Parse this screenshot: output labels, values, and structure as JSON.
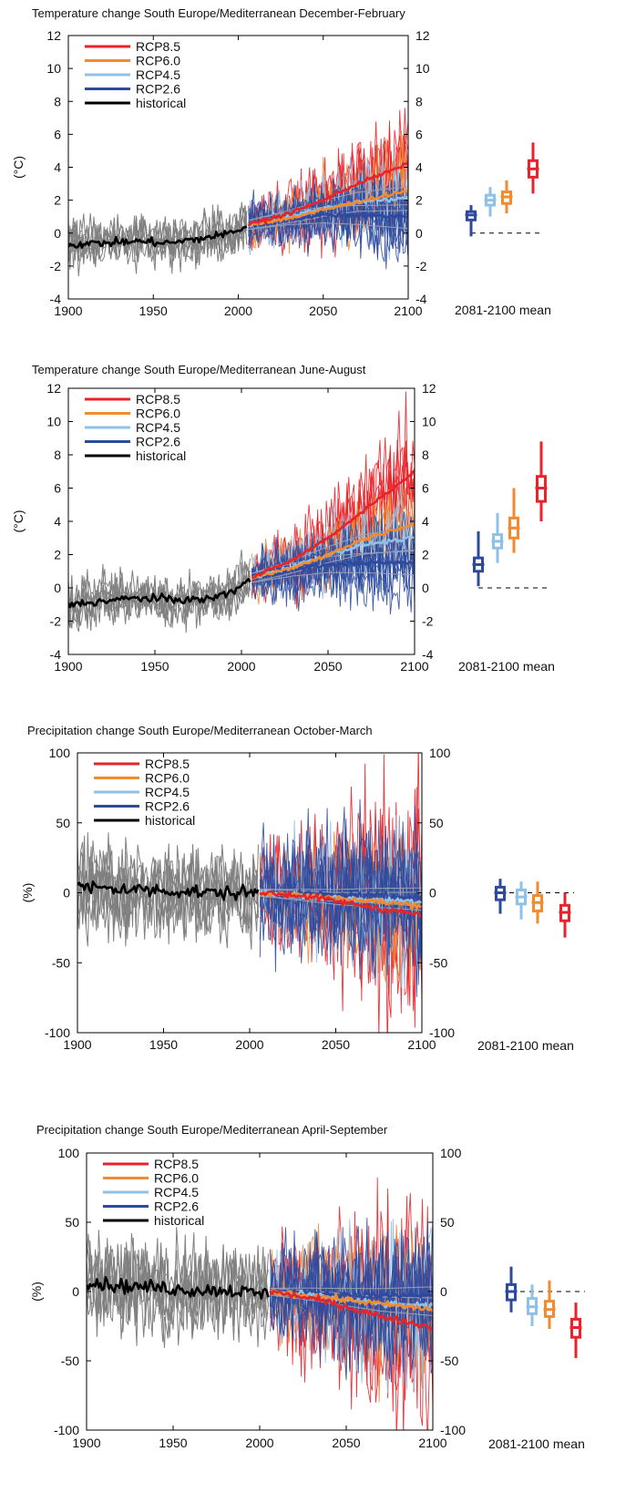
{
  "colors": {
    "rcp85": "#e8232a",
    "rcp60": "#f28a2e",
    "rcp45": "#8fc0e6",
    "rcp26": "#2e4a9e",
    "historical": "#000000",
    "spread_hist": "#808080"
  },
  "chart_data": [
    {
      "type": "line",
      "title": "Temperature change South Europe/Mediterranean December-February",
      "ylabel": "(°C)",
      "xlim": [
        1900,
        2100
      ],
      "ylim": [
        -4,
        12
      ],
      "xticks": [
        "1900",
        "1950",
        "2000",
        "2050",
        "2100"
      ],
      "yticks": [
        "-4",
        "-2",
        "0",
        "2",
        "4",
        "6",
        "8",
        "10",
        "12"
      ],
      "legend": {
        "placement": "top-left",
        "entries": [
          "RCP8.5",
          "RCP6.0",
          "RCP4.5",
          "RCP2.6",
          "historical"
        ]
      },
      "series": [
        {
          "name": "historical",
          "x": [
            1900,
            1920,
            1940,
            1960,
            1980,
            1995,
            2005
          ],
          "y": [
            -0.7,
            -0.6,
            -0.5,
            -0.6,
            -0.3,
            0.0,
            0.4
          ]
        },
        {
          "name": "RCP2.6",
          "x": [
            2006,
            2030,
            2050,
            2070,
            2100
          ],
          "y": [
            0.5,
            0.9,
            1.1,
            1.1,
            1.0
          ]
        },
        {
          "name": "RCP4.5",
          "x": [
            2006,
            2030,
            2050,
            2070,
            2100
          ],
          "y": [
            0.5,
            1.0,
            1.5,
            1.9,
            2.1
          ]
        },
        {
          "name": "RCP6.0",
          "x": [
            2006,
            2030,
            2050,
            2070,
            2100
          ],
          "y": [
            0.5,
            0.9,
            1.4,
            1.9,
            2.6
          ]
        },
        {
          "name": "RCP8.5",
          "x": [
            2006,
            2030,
            2050,
            2070,
            2100
          ],
          "y": [
            0.5,
            1.2,
            2.0,
            3.0,
            4.2
          ]
        }
      ],
      "boxplot": {
        "label": "2081-2100 mean",
        "items": [
          {
            "name": "RCP2.6",
            "min": -0.2,
            "q1": 0.8,
            "median": 1.1,
            "q3": 1.3,
            "max": 1.7
          },
          {
            "name": "RCP4.5",
            "min": 1.0,
            "q1": 1.7,
            "median": 2.0,
            "q3": 2.3,
            "max": 2.8
          },
          {
            "name": "RCP6.0",
            "min": 1.2,
            "q1": 1.8,
            "median": 2.2,
            "q3": 2.5,
            "max": 3.2
          },
          {
            "name": "RCP8.5",
            "min": 2.4,
            "q1": 3.4,
            "median": 3.9,
            "q3": 4.4,
            "max": 5.5
          }
        ]
      }
    },
    {
      "type": "line",
      "title": "Temperature change South Europe/Mediterranean June-August",
      "ylabel": "(°C)",
      "xlim": [
        1900,
        2100
      ],
      "ylim": [
        -4,
        12
      ],
      "xticks": [
        "1900",
        "1950",
        "2000",
        "2050",
        "2100"
      ],
      "yticks": [
        "-4",
        "-2",
        "0",
        "2",
        "4",
        "6",
        "8",
        "10",
        "12"
      ],
      "legend": {
        "placement": "top-left",
        "entries": [
          "RCP8.5",
          "RCP6.0",
          "RCP4.5",
          "RCP2.6",
          "historical"
        ]
      },
      "series": [
        {
          "name": "historical",
          "x": [
            1900,
            1920,
            1940,
            1960,
            1980,
            1995,
            2005
          ],
          "y": [
            -1.0,
            -0.8,
            -0.6,
            -0.7,
            -0.7,
            -0.2,
            0.5
          ]
        },
        {
          "name": "RCP2.6",
          "x": [
            2006,
            2030,
            2050,
            2070,
            2100
          ],
          "y": [
            0.6,
            1.1,
            1.4,
            1.5,
            1.5
          ]
        },
        {
          "name": "RCP4.5",
          "x": [
            2006,
            2030,
            2050,
            2070,
            2100
          ],
          "y": [
            0.6,
            1.3,
            2.0,
            2.6,
            3.0
          ]
        },
        {
          "name": "RCP6.0",
          "x": [
            2006,
            2030,
            2050,
            2070,
            2100
          ],
          "y": [
            0.6,
            1.2,
            2.0,
            2.9,
            3.9
          ]
        },
        {
          "name": "RCP8.5",
          "x": [
            2006,
            2030,
            2050,
            2070,
            2100
          ],
          "y": [
            0.6,
            1.7,
            3.0,
            4.6,
            7.0
          ]
        }
      ],
      "boxplot": {
        "label": "2081-2100 mean",
        "items": [
          {
            "name": "RCP2.6",
            "min": 0.1,
            "q1": 1.0,
            "median": 1.4,
            "q3": 1.8,
            "max": 3.4
          },
          {
            "name": "RCP4.5",
            "min": 1.5,
            "q1": 2.4,
            "median": 2.8,
            "q3": 3.2,
            "max": 4.5
          },
          {
            "name": "RCP6.0",
            "min": 2.1,
            "q1": 3.0,
            "median": 3.6,
            "q3": 4.2,
            "max": 6.0
          },
          {
            "name": "RCP8.5",
            "min": 4.0,
            "q1": 5.2,
            "median": 6.0,
            "q3": 6.7,
            "max": 8.8
          }
        ]
      }
    },
    {
      "type": "line",
      "title": "Precipitation change South Europe/Mediterranean October-March",
      "ylabel": "(%)",
      "xlim": [
        1900,
        2100
      ],
      "ylim": [
        -100,
        100
      ],
      "xticks": [
        "1900",
        "1950",
        "2000",
        "2050",
        "2100"
      ],
      "yticks": [
        "-100",
        "-50",
        "0",
        "50",
        "100"
      ],
      "legend": {
        "placement": "top-left",
        "entries": [
          "RCP8.5",
          "RCP6.0",
          "RCP4.5",
          "RCP2.6",
          "historical"
        ]
      },
      "series": [
        {
          "name": "historical",
          "x": [
            1900,
            1920,
            1940,
            1960,
            1980,
            2005
          ],
          "y": [
            4,
            3,
            2,
            1,
            0,
            0
          ]
        },
        {
          "name": "RCP2.6",
          "x": [
            2006,
            2030,
            2050,
            2070,
            2100
          ],
          "y": [
            0,
            -1,
            -2,
            -2,
            -3
          ]
        },
        {
          "name": "RCP4.5",
          "x": [
            2006,
            2030,
            2050,
            2070,
            2100
          ],
          "y": [
            0,
            -2,
            -4,
            -5,
            -6
          ]
        },
        {
          "name": "RCP6.0",
          "x": [
            2006,
            2030,
            2050,
            2070,
            2100
          ],
          "y": [
            0,
            -2,
            -4,
            -6,
            -9
          ]
        },
        {
          "name": "RCP8.5",
          "x": [
            2006,
            2030,
            2050,
            2070,
            2100
          ],
          "y": [
            0,
            -2,
            -6,
            -10,
            -16
          ]
        }
      ],
      "boxplot": {
        "label": "2081-2100 mean",
        "items": [
          {
            "name": "RCP2.6",
            "min": -15,
            "q1": -5,
            "median": 0,
            "q3": 4,
            "max": 10
          },
          {
            "name": "RCP4.5",
            "min": -19,
            "q1": -8,
            "median": -3,
            "q3": 2,
            "max": 8
          },
          {
            "name": "RCP6.0",
            "min": -22,
            "q1": -13,
            "median": -7,
            "q3": -2,
            "max": 8
          },
          {
            "name": "RCP8.5",
            "min": -32,
            "q1": -20,
            "median": -14,
            "q3": -9,
            "max": 0
          }
        ]
      }
    },
    {
      "type": "line",
      "title": "Precipitation change South Europe/Mediterranean April-September",
      "ylabel": "(%)",
      "xlim": [
        1900,
        2100
      ],
      "ylim": [
        -100,
        100
      ],
      "xticks": [
        "1900",
        "1950",
        "2000",
        "2050",
        "2100"
      ],
      "yticks": [
        "-100",
        "-50",
        "0",
        "50",
        "100"
      ],
      "legend": {
        "placement": "top-left",
        "entries": [
          "RCP8.5",
          "RCP6.0",
          "RCP4.5",
          "RCP2.6",
          "historical"
        ]
      },
      "series": [
        {
          "name": "historical",
          "x": [
            1900,
            1920,
            1940,
            1960,
            1980,
            2005
          ],
          "y": [
            7,
            4,
            3,
            1,
            1,
            -2
          ]
        },
        {
          "name": "RCP2.6",
          "x": [
            2006,
            2030,
            2050,
            2070,
            2100
          ],
          "y": [
            0,
            -1,
            -2,
            -3,
            -3
          ]
        },
        {
          "name": "RCP4.5",
          "x": [
            2006,
            2030,
            2050,
            2070,
            2100
          ],
          "y": [
            0,
            -3,
            -6,
            -9,
            -11
          ]
        },
        {
          "name": "RCP6.0",
          "x": [
            2006,
            2030,
            2050,
            2070,
            2100
          ],
          "y": [
            0,
            -3,
            -6,
            -9,
            -13
          ]
        },
        {
          "name": "RCP8.5",
          "x": [
            2006,
            2030,
            2050,
            2070,
            2100
          ],
          "y": [
            0,
            -5,
            -11,
            -18,
            -26
          ]
        }
      ],
      "boxplot": {
        "label": "2081-2100 mean",
        "items": [
          {
            "name": "RCP2.6",
            "min": -15,
            "q1": -6,
            "median": 0,
            "q3": 5,
            "max": 18
          },
          {
            "name": "RCP4.5",
            "min": -25,
            "q1": -16,
            "median": -11,
            "q3": -5,
            "max": 5
          },
          {
            "name": "RCP6.0",
            "min": -27,
            "q1": -18,
            "median": -13,
            "q3": -7,
            "max": 8
          },
          {
            "name": "RCP8.5",
            "min": -48,
            "q1": -33,
            "median": -26,
            "q3": -20,
            "max": -8
          }
        ]
      }
    }
  ]
}
